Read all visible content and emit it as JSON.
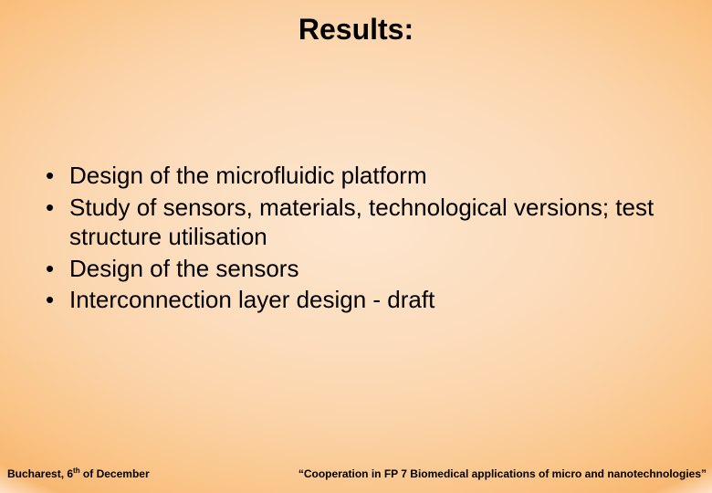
{
  "slide": {
    "title": "Results:",
    "bullets": [
      "Design of the microfluidic platform",
      "Study of sensors, materials, technological versions; test structure utilisation",
      "Design of the sensors",
      "Interconnection layer design - draft"
    ],
    "footer": {
      "left_prefix": "Bucharest, 6",
      "left_super": "th",
      "left_suffix": " of December",
      "right": "“Cooperation in FP 7 Biomedical applications of micro and nanotechnologies”"
    }
  },
  "style": {
    "background": {
      "type": "radial-gradient",
      "inner_color": "#fde6cf",
      "mid_color": "#fbd3a8",
      "outer_color": "#f8b872",
      "edge_color": "#ffffff"
    },
    "title_fontsize": 32,
    "title_weight": "bold",
    "title_color": "#000000",
    "bullet_fontsize": 26,
    "bullet_color": "#000000",
    "bullet_marker": "•",
    "footer_fontsize": 12,
    "footer_weight": "bold",
    "footer_color": "#000000",
    "font_family": "Arial"
  }
}
